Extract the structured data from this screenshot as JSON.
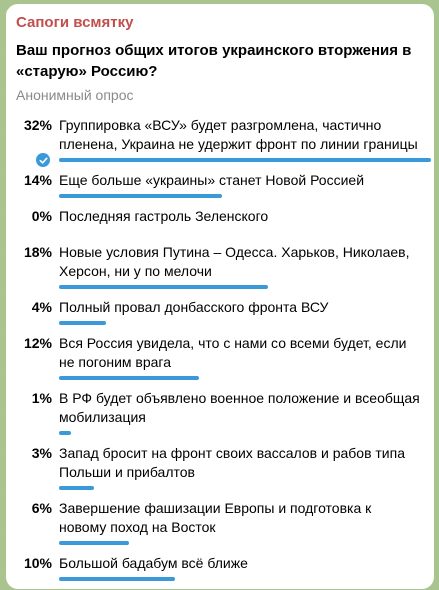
{
  "channel_name": "Сапоги всмятку",
  "poll": {
    "question": "Ваш прогноз  общих итогов украинского вторжения в «старую» Россию?",
    "type_label": "Анонимный опрос",
    "accent_color": "#3a9ad9",
    "options": [
      {
        "percent": "32%",
        "value": 32,
        "voted": true,
        "text": "Группировка «ВСУ» будет разгромлена, частично пленена, Украина не удержит фронт по линии границы"
      },
      {
        "percent": "14%",
        "value": 14,
        "voted": false,
        "text": "Еще больше «украины» станет Новой Россией"
      },
      {
        "percent": "0%",
        "value": 0,
        "voted": false,
        "text": "Последняя гастроль Зеленского"
      },
      {
        "percent": "18%",
        "value": 18,
        "voted": false,
        "text": "Новые условия Путина – Одесса. Харьков, Николаев, Херсон, ни у по мелочи"
      },
      {
        "percent": "4%",
        "value": 4,
        "voted": false,
        "text": "Полный провал донбасского фронта ВСУ"
      },
      {
        "percent": "12%",
        "value": 12,
        "voted": false,
        "text": "Вся Россия увидела, что с нами со всеми будет, если не погоним врага"
      },
      {
        "percent": "1%",
        "value": 1,
        "voted": false,
        "text": "В РФ будет объявлено военное положение и всеобщая мобилизация"
      },
      {
        "percent": "3%",
        "value": 3,
        "voted": false,
        "text": "Запад бросит на фронт своих вассалов   и рабов типа Польши и прибалтов"
      },
      {
        "percent": "6%",
        "value": 6,
        "voted": false,
        "text": "Завершение фашизации Европы и подготовка к новому поход на Восток"
      },
      {
        "percent": "10%",
        "value": 10,
        "voted": false,
        "text": "Большой бадабум всё ближе"
      }
    ]
  }
}
